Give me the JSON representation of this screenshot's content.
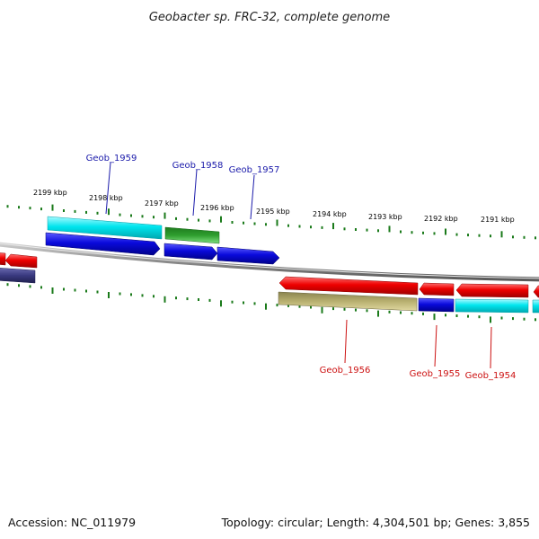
{
  "title": "Geobacter sp. FRC-32, complete genome",
  "footer": {
    "accession": "Accession: NC_011979",
    "summary": "Topology: circular; Length: 4,304,501 bp; Genes: 3,855"
  },
  "ticks": [
    "2199 kbp",
    "2198 kbp",
    "2197 kbp",
    "2196 kbp",
    "2195 kbp",
    "2194 kbp",
    "2193 kbp",
    "2192 kbp",
    "2191 kbp"
  ],
  "genes_top": [
    "Geob_1959",
    "Geob_1958",
    "Geob_1957"
  ],
  "genes_bottom": [
    "Geob_1956",
    "Geob_1955",
    "Geob_1954"
  ],
  "colors": {
    "backbone": "#8c8c8c",
    "tick": "#1a7a1a",
    "label_top": "#1a1aaa",
    "label_bottom": "#cc1111",
    "cyan": "#00e5ee",
    "blue": "#0a0adc",
    "green": "#2e9e2e",
    "red": "#ee0000",
    "olive": "#b8b070",
    "navy": "#3a3a80"
  }
}
